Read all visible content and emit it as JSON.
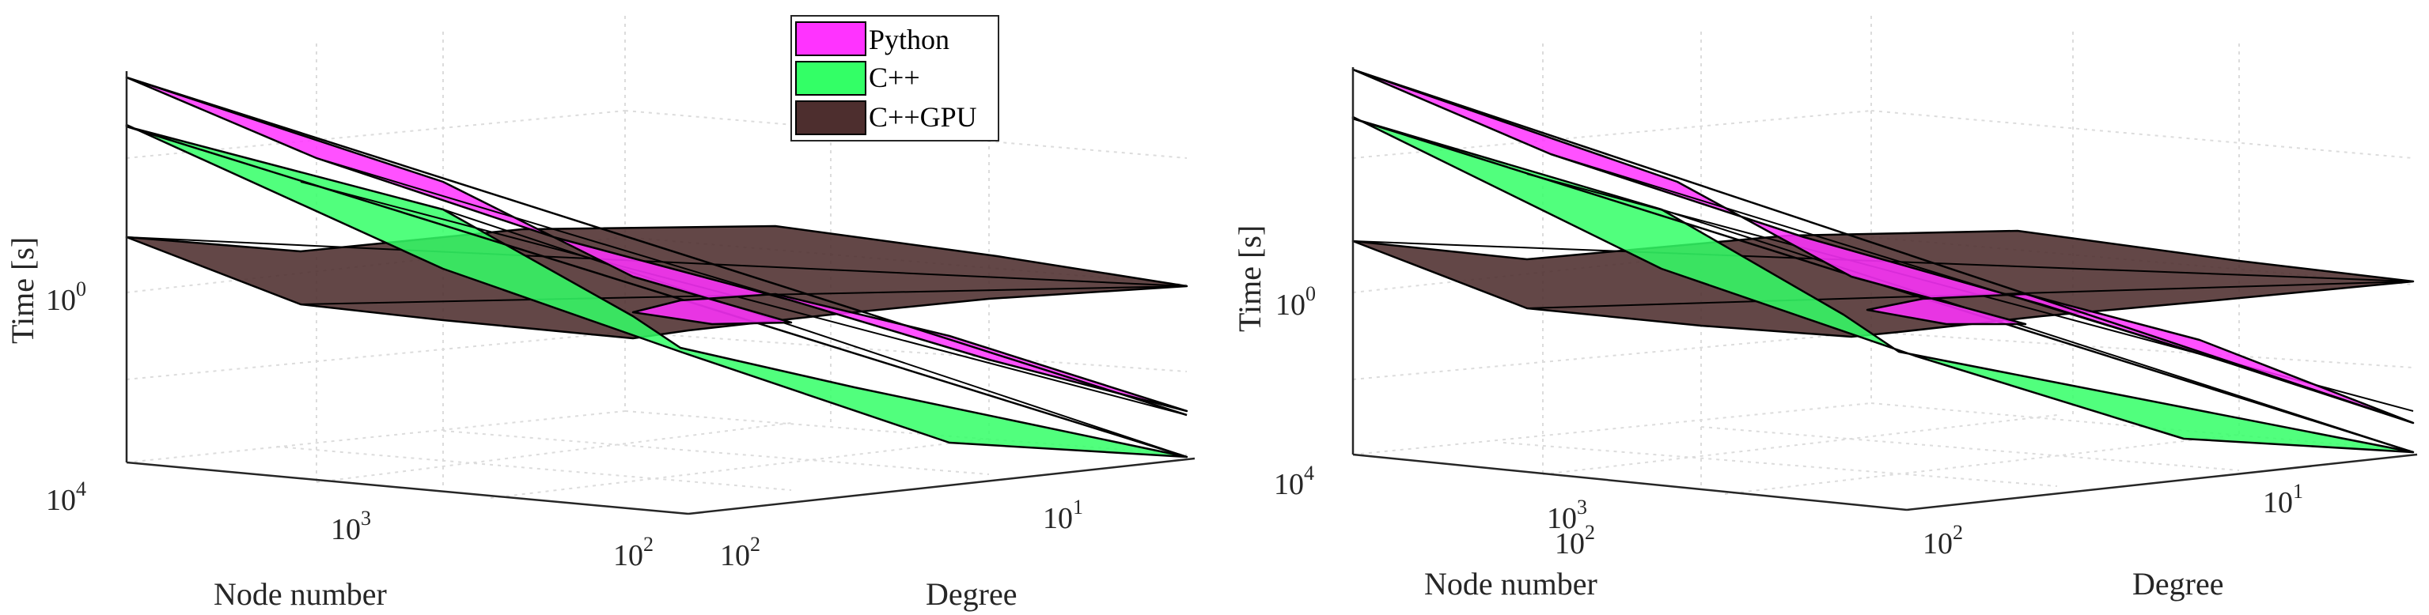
{
  "chart_data": [
    {
      "type": "surface3d",
      "panel": "left",
      "xlabel": "Node number",
      "ylabel": "Degree",
      "zlabel": "Time [s]",
      "x_ticks": [
        {
          "base": "10",
          "exp": "4"
        },
        {
          "base": "10",
          "exp": "3"
        },
        {
          "base": "10",
          "exp": "2"
        }
      ],
      "y_ticks": [
        {
          "base": "10",
          "exp": "2"
        },
        {
          "base": "10",
          "exp": "1"
        }
      ],
      "z_ticks": [
        {
          "base": "10",
          "exp": "0"
        }
      ],
      "series": [
        {
          "name": "Python",
          "color": "#ff33ff"
        },
        {
          "name": "C++",
          "color": "#33ff66"
        },
        {
          "name": "C++GPU",
          "color": "#4d2e2e"
        }
      ],
      "grid": true
    },
    {
      "type": "surface3d",
      "panel": "right",
      "xlabel": "Node number",
      "ylabel": "Degree",
      "zlabel": "Time [s]",
      "x_ticks": [
        {
          "base": "10",
          "exp": "4"
        },
        {
          "base": "10",
          "exp": "3"
        },
        {
          "base": "10",
          "exp": "2"
        }
      ],
      "y_ticks": [
        {
          "base": "10",
          "exp": "2"
        },
        {
          "base": "10",
          "exp": "1"
        }
      ],
      "z_ticks": [
        {
          "base": "10",
          "exp": "0"
        }
      ],
      "series": [
        {
          "name": "Python",
          "color": "#ff33ff"
        },
        {
          "name": "C++",
          "color": "#33ff66"
        },
        {
          "name": "C++GPU",
          "color": "#4d2e2e"
        }
      ],
      "grid": true
    }
  ],
  "legend": {
    "placement": "top-center",
    "entries": [
      {
        "label": "Python",
        "color": "#ff33ff"
      },
      {
        "label": "C++",
        "color": "#33ff66"
      },
      {
        "label": "C++GPU",
        "color": "#4d2e2e"
      }
    ]
  }
}
